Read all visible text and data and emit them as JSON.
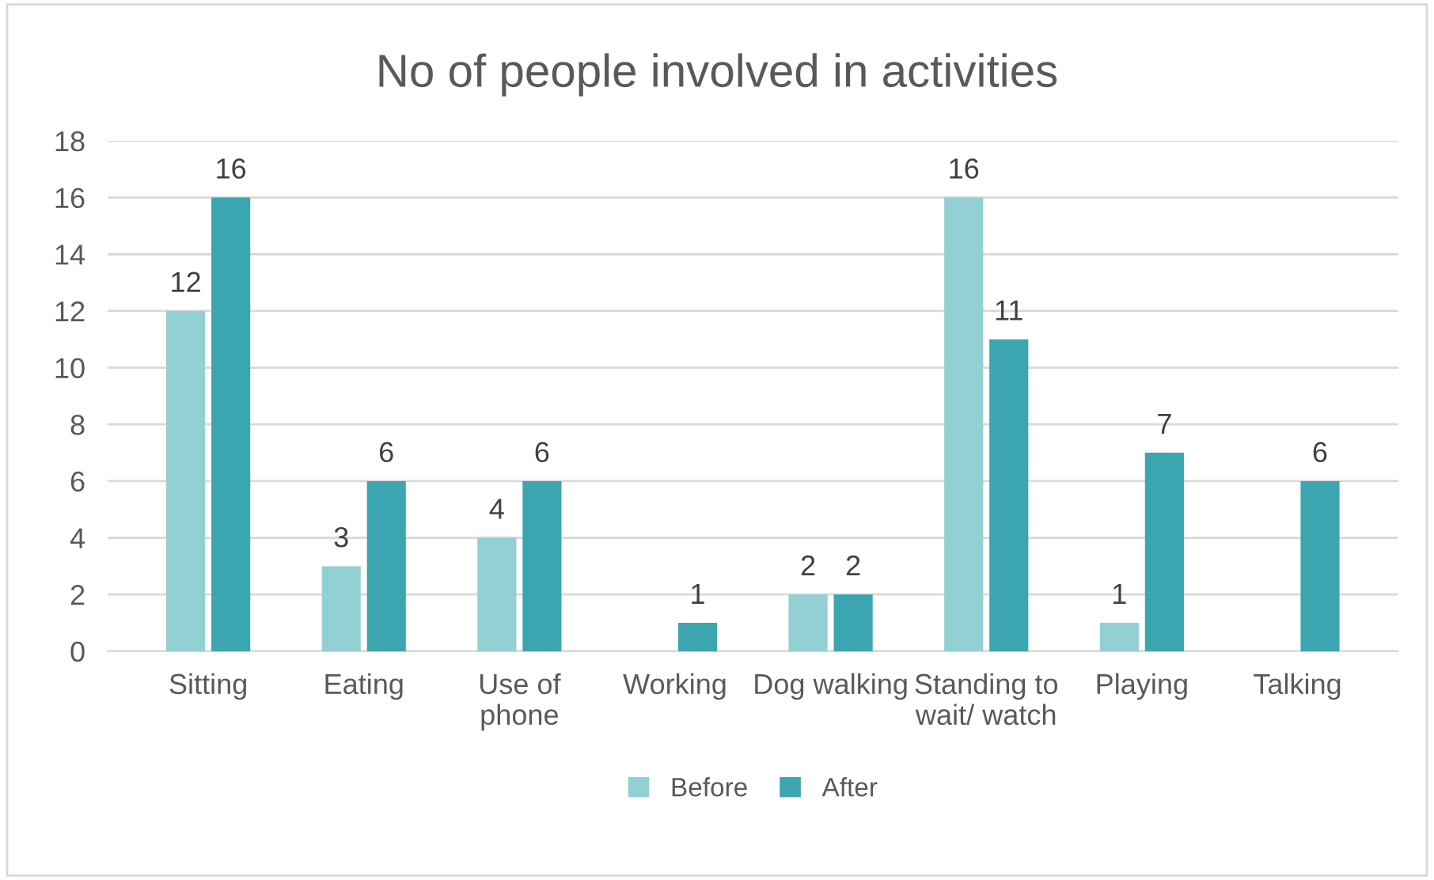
{
  "chart_data": {
    "type": "bar",
    "title": "No of people involved in activities",
    "categories": [
      "Sitting",
      "Eating",
      "Use of\nphone",
      "Working",
      "Dog walking",
      "Standing to\nwait/ watch",
      "Playing",
      "Talking"
    ],
    "series": [
      {
        "name": "Before",
        "color": "#92d0d3",
        "values": [
          12,
          3,
          4,
          null,
          2,
          16,
          1,
          null
        ]
      },
      {
        "name": "After",
        "color": "#3ba6b0",
        "values": [
          16,
          6,
          6,
          1,
          2,
          11,
          7,
          6
        ]
      }
    ],
    "ylim": [
      0,
      18
    ],
    "yticks": [
      0,
      2,
      4,
      6,
      8,
      10,
      12,
      14,
      16,
      18
    ],
    "grid": "y",
    "legend": "bottom",
    "data_labels": true
  }
}
